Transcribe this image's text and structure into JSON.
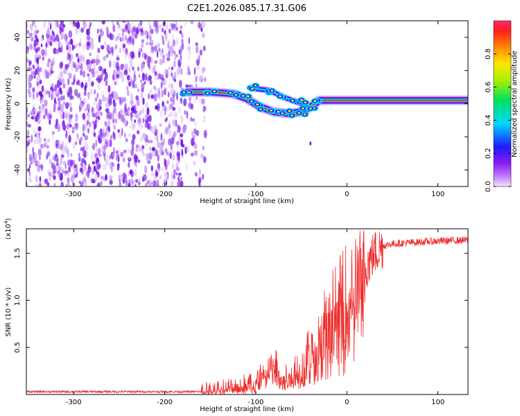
{
  "title": "C2E1.2026.085.17.31.G06",
  "chart_data": [
    {
      "type": "heatmap",
      "xlabel": "Height of straight line (km)",
      "ylabel": "Frequency (Hz)",
      "xlim": [
        -352,
        133
      ],
      "ylim": [
        -50,
        50
      ],
      "x_ticks": [
        -300,
        -200,
        -100,
        0,
        100
      ],
      "x_tick_labels": [
        "-300",
        "-200",
        "-100",
        "0",
        "100"
      ],
      "y_ticks": [
        -40,
        -20,
        0,
        20,
        40
      ],
      "y_tick_labels": [
        "-40",
        "-20",
        "0",
        "20",
        "40"
      ],
      "colorbar": {
        "label": "Normalized spectral amplitude",
        "range": [
          0,
          1
        ],
        "ticks": [
          0,
          0.2,
          0.4,
          0.6,
          0.8
        ],
        "tick_labels": [
          "0.0",
          "0.2",
          "0.4",
          "0.6",
          "0.8"
        ]
      },
      "noise_region_x": [
        -352,
        -155
      ],
      "noise_color": "#7f22e6",
      "signal_track": [
        {
          "x": -175,
          "y": 7
        },
        {
          "x": -150,
          "y": 7
        },
        {
          "x": -125,
          "y": 6
        },
        {
          "x": -110,
          "y": 3
        },
        {
          "x": -95,
          "y": -2
        },
        {
          "x": -80,
          "y": -5
        },
        {
          "x": -65,
          "y": -6
        },
        {
          "x": -50,
          "y": -5
        },
        {
          "x": -40,
          "y": -2
        },
        {
          "x": -30,
          "y": 2
        },
        {
          "x": -10,
          "y": 2
        },
        {
          "x": 10,
          "y": 2
        },
        {
          "x": 50,
          "y": 2
        },
        {
          "x": 90,
          "y": 2
        },
        {
          "x": 133,
          "y": 2
        }
      ],
      "side_track": [
        {
          "x": -100,
          "y": 9
        },
        {
          "x": -85,
          "y": 8
        },
        {
          "x": -70,
          "y": 4
        },
        {
          "x": -55,
          "y": 1
        },
        {
          "x": -45,
          "y": -1
        }
      ],
      "stray_points": [
        {
          "x": -40,
          "y": -24
        }
      ]
    },
    {
      "type": "line",
      "xlabel": "Height of straight line (km)",
      "ylabel": "SNR (10 * v/v)",
      "scale_label": "(x10",
      "scale_exp": "4",
      "xlim": [
        -352,
        133
      ],
      "ylim": [
        0,
        1.76
      ],
      "x_ticks": [
        -300,
        -200,
        -100,
        0,
        100
      ],
      "x_tick_labels": [
        "-300",
        "-200",
        "-100",
        "0",
        "100"
      ],
      "y_ticks": [
        0.5,
        1.0,
        1.5
      ],
      "y_tick_labels": [
        "0.5",
        "1.0",
        "1.5"
      ],
      "color": "#ee2b2b",
      "series": [
        {
          "name": "SNR",
          "x": [
            -352,
            -160,
            -140,
            -120,
            -100,
            -90,
            -80,
            -70,
            -60,
            -50,
            -40,
            -30,
            -20,
            -10,
            0,
            10,
            20,
            30,
            40,
            50,
            80,
            100,
            133
          ],
          "values": [
            0.03,
            0.03,
            0.05,
            0.08,
            0.15,
            0.25,
            0.3,
            0.18,
            0.22,
            0.3,
            0.45,
            0.6,
            0.85,
            0.9,
            1.05,
            1.2,
            1.35,
            1.5,
            1.58,
            1.6,
            1.62,
            1.63,
            1.64
          ]
        }
      ]
    }
  ]
}
